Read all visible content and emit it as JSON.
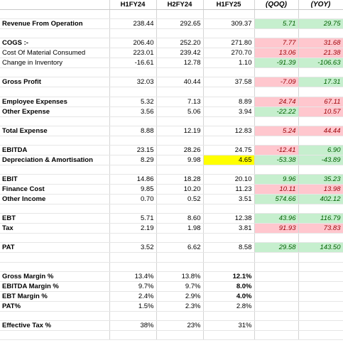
{
  "headers": [
    "",
    "H1FY24",
    "H2FY24",
    "H1FY25",
    "(QOQ)",
    "(YOY)"
  ],
  "rows": [
    {
      "type": "blank"
    },
    {
      "type": "data",
      "bold": true,
      "label": "Revenue From Operation",
      "vals": [
        "238.44",
        "292.65",
        "309.37"
      ],
      "qoq": "5.71",
      "yoy": "29.75",
      "qc": "g",
      "yc": "g"
    },
    {
      "type": "blank"
    },
    {
      "type": "data",
      "bold": true,
      "label": "COGS :-",
      "vals": [
        "206.40",
        "252.20",
        "271.80"
      ],
      "qoq": "7.77",
      "yoy": "31.68",
      "qc": "r",
      "yc": "r"
    },
    {
      "type": "data",
      "bold": false,
      "label": "Cost Of Material Consumed",
      "vals": [
        "223.01",
        "239.42",
        "270.70"
      ],
      "qoq": "13.06",
      "yoy": "21.38",
      "qc": "r",
      "yc": "r"
    },
    {
      "type": "data",
      "bold": false,
      "label": "Change in Inventory",
      "vals": [
        "-16.61",
        "12.78",
        "1.10"
      ],
      "qoq": "-91.39",
      "yoy": "-106.63",
      "qc": "g",
      "yc": "g"
    },
    {
      "type": "blank"
    },
    {
      "type": "data",
      "bold": true,
      "label": "Gross Profit",
      "vals": [
        "32.03",
        "40.44",
        "37.58"
      ],
      "qoq": "-7.09",
      "yoy": "17.31",
      "qc": "r",
      "yc": "g"
    },
    {
      "type": "blank"
    },
    {
      "type": "data",
      "bold": true,
      "label": "Employee Expenses",
      "vals": [
        "5.32",
        "7.13",
        "8.89"
      ],
      "qoq": "24.74",
      "yoy": "67.11",
      "qc": "r",
      "yc": "r"
    },
    {
      "type": "data",
      "bold": true,
      "label": "Other Expense",
      "vals": [
        "3.56",
        "5.06",
        "3.94"
      ],
      "qoq": "-22.22",
      "yoy": "10.57",
      "qc": "g",
      "yc": "r"
    },
    {
      "type": "blank"
    },
    {
      "type": "data",
      "bold": true,
      "label": "Total Expense",
      "vals": [
        "8.88",
        "12.19",
        "12.83"
      ],
      "qoq": "5.24",
      "yoy": "44.44",
      "qc": "r",
      "yc": "r"
    },
    {
      "type": "blank"
    },
    {
      "type": "data",
      "bold": true,
      "label": "EBITDA",
      "vals": [
        "23.15",
        "28.26",
        "24.75"
      ],
      "qoq": "-12.41",
      "yoy": "6.90",
      "qc": "r",
      "yc": "g"
    },
    {
      "type": "data",
      "bold": true,
      "label": "Depreciation & Amortisation",
      "vals": [
        "8.29",
        "9.98",
        "4.65"
      ],
      "qoq": "-53.38",
      "yoy": "-43.89",
      "qc": "g",
      "yc": "g",
      "highlight": 2
    },
    {
      "type": "blank"
    },
    {
      "type": "data",
      "bold": true,
      "label": "EBIT",
      "vals": [
        "14.86",
        "18.28",
        "20.10"
      ],
      "qoq": "9.96",
      "yoy": "35.23",
      "qc": "g",
      "yc": "g"
    },
    {
      "type": "data",
      "bold": true,
      "label": "Finance Cost",
      "vals": [
        "9.85",
        "10.20",
        "11.23"
      ],
      "qoq": "10.11",
      "yoy": "13.98",
      "qc": "r",
      "yc": "r"
    },
    {
      "type": "data",
      "bold": true,
      "label": "Other Income",
      "vals": [
        "0.70",
        "0.52",
        "3.51"
      ],
      "qoq": "574.66",
      "yoy": "402.12",
      "qc": "g",
      "yc": "g"
    },
    {
      "type": "blank"
    },
    {
      "type": "data",
      "bold": true,
      "label": "EBT",
      "vals": [
        "5.71",
        "8.60",
        "12.38"
      ],
      "qoq": "43.96",
      "yoy": "116.79",
      "qc": "g",
      "yc": "g"
    },
    {
      "type": "data",
      "bold": true,
      "label": "Tax",
      "vals": [
        "2.19",
        "1.98",
        "3.81"
      ],
      "qoq": "91.93",
      "yoy": "73.83",
      "qc": "r",
      "yc": "r"
    },
    {
      "type": "blank"
    },
    {
      "type": "data",
      "bold": true,
      "label": "PAT",
      "vals": [
        "3.52",
        "6.62",
        "8.58"
      ],
      "qoq": "29.58",
      "yoy": "143.50",
      "qc": "g",
      "yc": "g"
    },
    {
      "type": "blank"
    },
    {
      "type": "blank"
    },
    {
      "type": "data",
      "bold": true,
      "label": "Gross Margin %",
      "vals": [
        "13.4%",
        "13.8%",
        "12.1%"
      ],
      "qoq": "",
      "yoy": "",
      "qc": "",
      "yc": "",
      "boldlast": true
    },
    {
      "type": "data",
      "bold": true,
      "label": "EBITDA Margin %",
      "vals": [
        "9.7%",
        "9.7%",
        "8.0%"
      ],
      "qoq": "",
      "yoy": "",
      "qc": "",
      "yc": "",
      "boldlast": true
    },
    {
      "type": "data",
      "bold": true,
      "label": "EBT Margin %",
      "vals": [
        "2.4%",
        "2.9%",
        "4.0%"
      ],
      "qoq": "",
      "yoy": "",
      "qc": "",
      "yc": "",
      "boldlast": true
    },
    {
      "type": "data",
      "bold": true,
      "label": "PAT%",
      "vals": [
        "1.5%",
        "2.3%",
        "2.8%"
      ],
      "qoq": "",
      "yoy": "",
      "qc": "",
      "yc": ""
    },
    {
      "type": "blank"
    },
    {
      "type": "data",
      "bold": true,
      "label": "Effective Tax %",
      "vals": [
        "38%",
        "23%",
        "31%"
      ],
      "qoq": "",
      "yoy": "",
      "qc": "",
      "yc": ""
    },
    {
      "type": "blank"
    }
  ]
}
